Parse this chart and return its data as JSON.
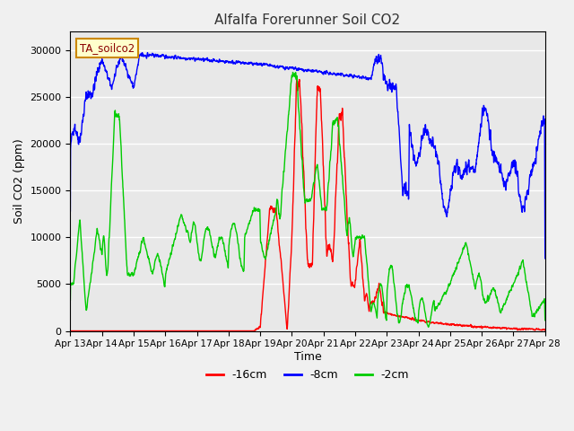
{
  "title": "Alfalfa Forerunner Soil CO2",
  "xlabel": "Time",
  "ylabel": "Soil CO2 (ppm)",
  "ylim": [
    0,
    32000
  ],
  "yticks": [
    0,
    5000,
    10000,
    15000,
    20000,
    25000,
    30000
  ],
  "xtick_labels": [
    "Apr 13",
    "Apr 14",
    "Apr 15",
    "Apr 16",
    "Apr 17",
    "Apr 18",
    "Apr 19",
    "Apr 20",
    "Apr 21",
    "Apr 22",
    "Apr 23",
    "Apr 24",
    "Apr 25",
    "Apr 26",
    "Apr 27",
    "Apr 28"
  ],
  "legend_labels": [
    "-16cm",
    "-8cm",
    "-2cm"
  ],
  "legend_colors": [
    "#ff0000",
    "#0000ff",
    "#00cc00"
  ],
  "line_width": 1.0,
  "annotation_text": "TA_soilco2",
  "fig_bg_color": "#f0f0f0",
  "plot_bg_color": "#e8e8e8",
  "grid_color": "#ffffff",
  "title_color": "#333333",
  "seed": 42
}
